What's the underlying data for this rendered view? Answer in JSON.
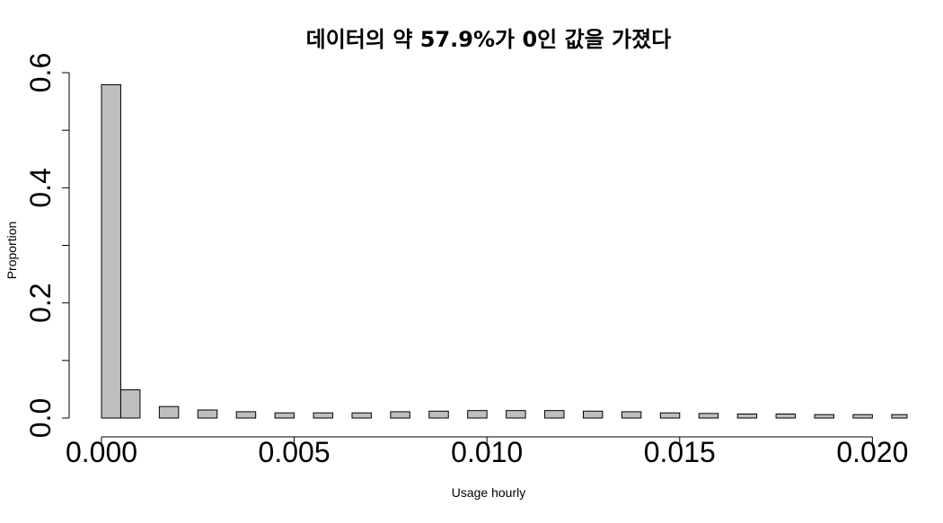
{
  "chart_data": {
    "type": "bar",
    "title": "데이터의 약 57.9%가 0인 값을 가졌다",
    "xlabel": "Usage hourly",
    "ylabel": "Proportion",
    "x_ticks": [
      "0.000",
      "0.005",
      "0.010",
      "0.015",
      "0.020"
    ],
    "y_ticks": [
      "0.0",
      "0.2",
      "0.4",
      "0.6"
    ],
    "xlim": [
      0.0,
      0.0209
    ],
    "ylim": [
      0.0,
      0.6
    ],
    "bar_width": 0.0005,
    "grid": false,
    "bar_color": "#bebebe",
    "bar_outline": "#000000",
    "x": [
      0.0,
      0.0005,
      0.0015,
      0.0025,
      0.0035,
      0.0045,
      0.0055,
      0.0065,
      0.0075,
      0.0085,
      0.0095,
      0.0105,
      0.0115,
      0.0125,
      0.0135,
      0.0145,
      0.0155,
      0.0165,
      0.0175,
      0.0185,
      0.0195,
      0.0205
    ],
    "values": [
      0.579,
      0.049,
      0.02,
      0.014,
      0.011,
      0.009,
      0.009,
      0.009,
      0.011,
      0.012,
      0.013,
      0.013,
      0.013,
      0.012,
      0.011,
      0.009,
      0.008,
      0.007,
      0.007,
      0.006,
      0.006,
      0.006
    ]
  }
}
